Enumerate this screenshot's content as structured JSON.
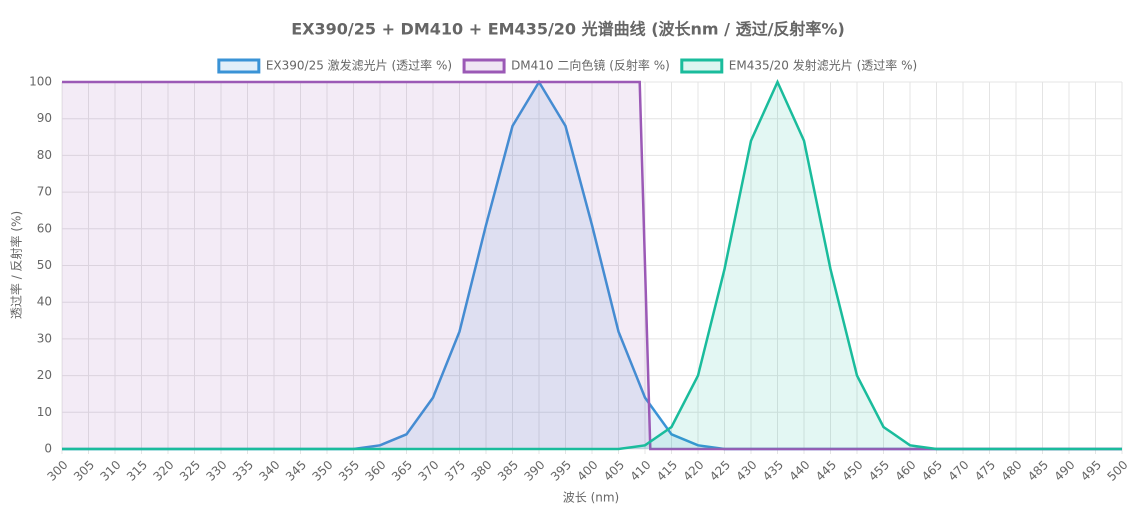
{
  "chart_data": {
    "type": "line",
    "title": "EX390/25 + DM410 + EM435/20 光谱曲线 (波长nm / 透过/反射率%)",
    "xlabel": "波长 (nm)",
    "ylabel": "透过率 / 反射率 (%)",
    "x": [
      300,
      305,
      310,
      315,
      320,
      325,
      330,
      335,
      340,
      345,
      350,
      355,
      360,
      365,
      370,
      375,
      380,
      385,
      390,
      395,
      400,
      405,
      410,
      415,
      420,
      425,
      430,
      435,
      440,
      445,
      450,
      455,
      460,
      465,
      470,
      475,
      480,
      485,
      490,
      495,
      500
    ],
    "series": [
      {
        "name": "EX390/25 激发滤光片 (透过率 %)",
        "color": "#3a93d6",
        "values": [
          0,
          0,
          0,
          0,
          0,
          0,
          0,
          0,
          0,
          0,
          0,
          0,
          1,
          4,
          14,
          32,
          61,
          88,
          100,
          88,
          61,
          32,
          14,
          4,
          1,
          0,
          0,
          0,
          0,
          0,
          0,
          0,
          0,
          0,
          0,
          0,
          0,
          0,
          0,
          0,
          0
        ]
      },
      {
        "name": "DM410 二向色镜 (反射率 %)",
        "color": "#9b59b6",
        "x": [
          300,
          409,
          411,
          500
        ],
        "values": [
          100,
          100,
          0,
          0
        ]
      },
      {
        "name": "EM435/20 发射滤光片 (透过率 %)",
        "color": "#1abc9c",
        "values": [
          0,
          0,
          0,
          0,
          0,
          0,
          0,
          0,
          0,
          0,
          0,
          0,
          0,
          0,
          0,
          0,
          0,
          0,
          0,
          0,
          0,
          0,
          1,
          6,
          20,
          49,
          84,
          100,
          84,
          49,
          20,
          6,
          1,
          0,
          0,
          0,
          0,
          0,
          0,
          0,
          0
        ]
      }
    ],
    "xlim": [
      300,
      500
    ],
    "ylim": [
      0,
      100
    ],
    "xticks": [
      300,
      305,
      310,
      315,
      320,
      325,
      330,
      335,
      340,
      345,
      350,
      355,
      360,
      365,
      370,
      375,
      380,
      385,
      390,
      395,
      400,
      405,
      410,
      415,
      420,
      425,
      430,
      435,
      440,
      445,
      450,
      455,
      460,
      465,
      470,
      475,
      480,
      485,
      490,
      495,
      500
    ],
    "yticks": [
      0,
      10,
      20,
      30,
      40,
      50,
      60,
      70,
      80,
      90,
      100
    ],
    "grid": true,
    "fill": true
  }
}
